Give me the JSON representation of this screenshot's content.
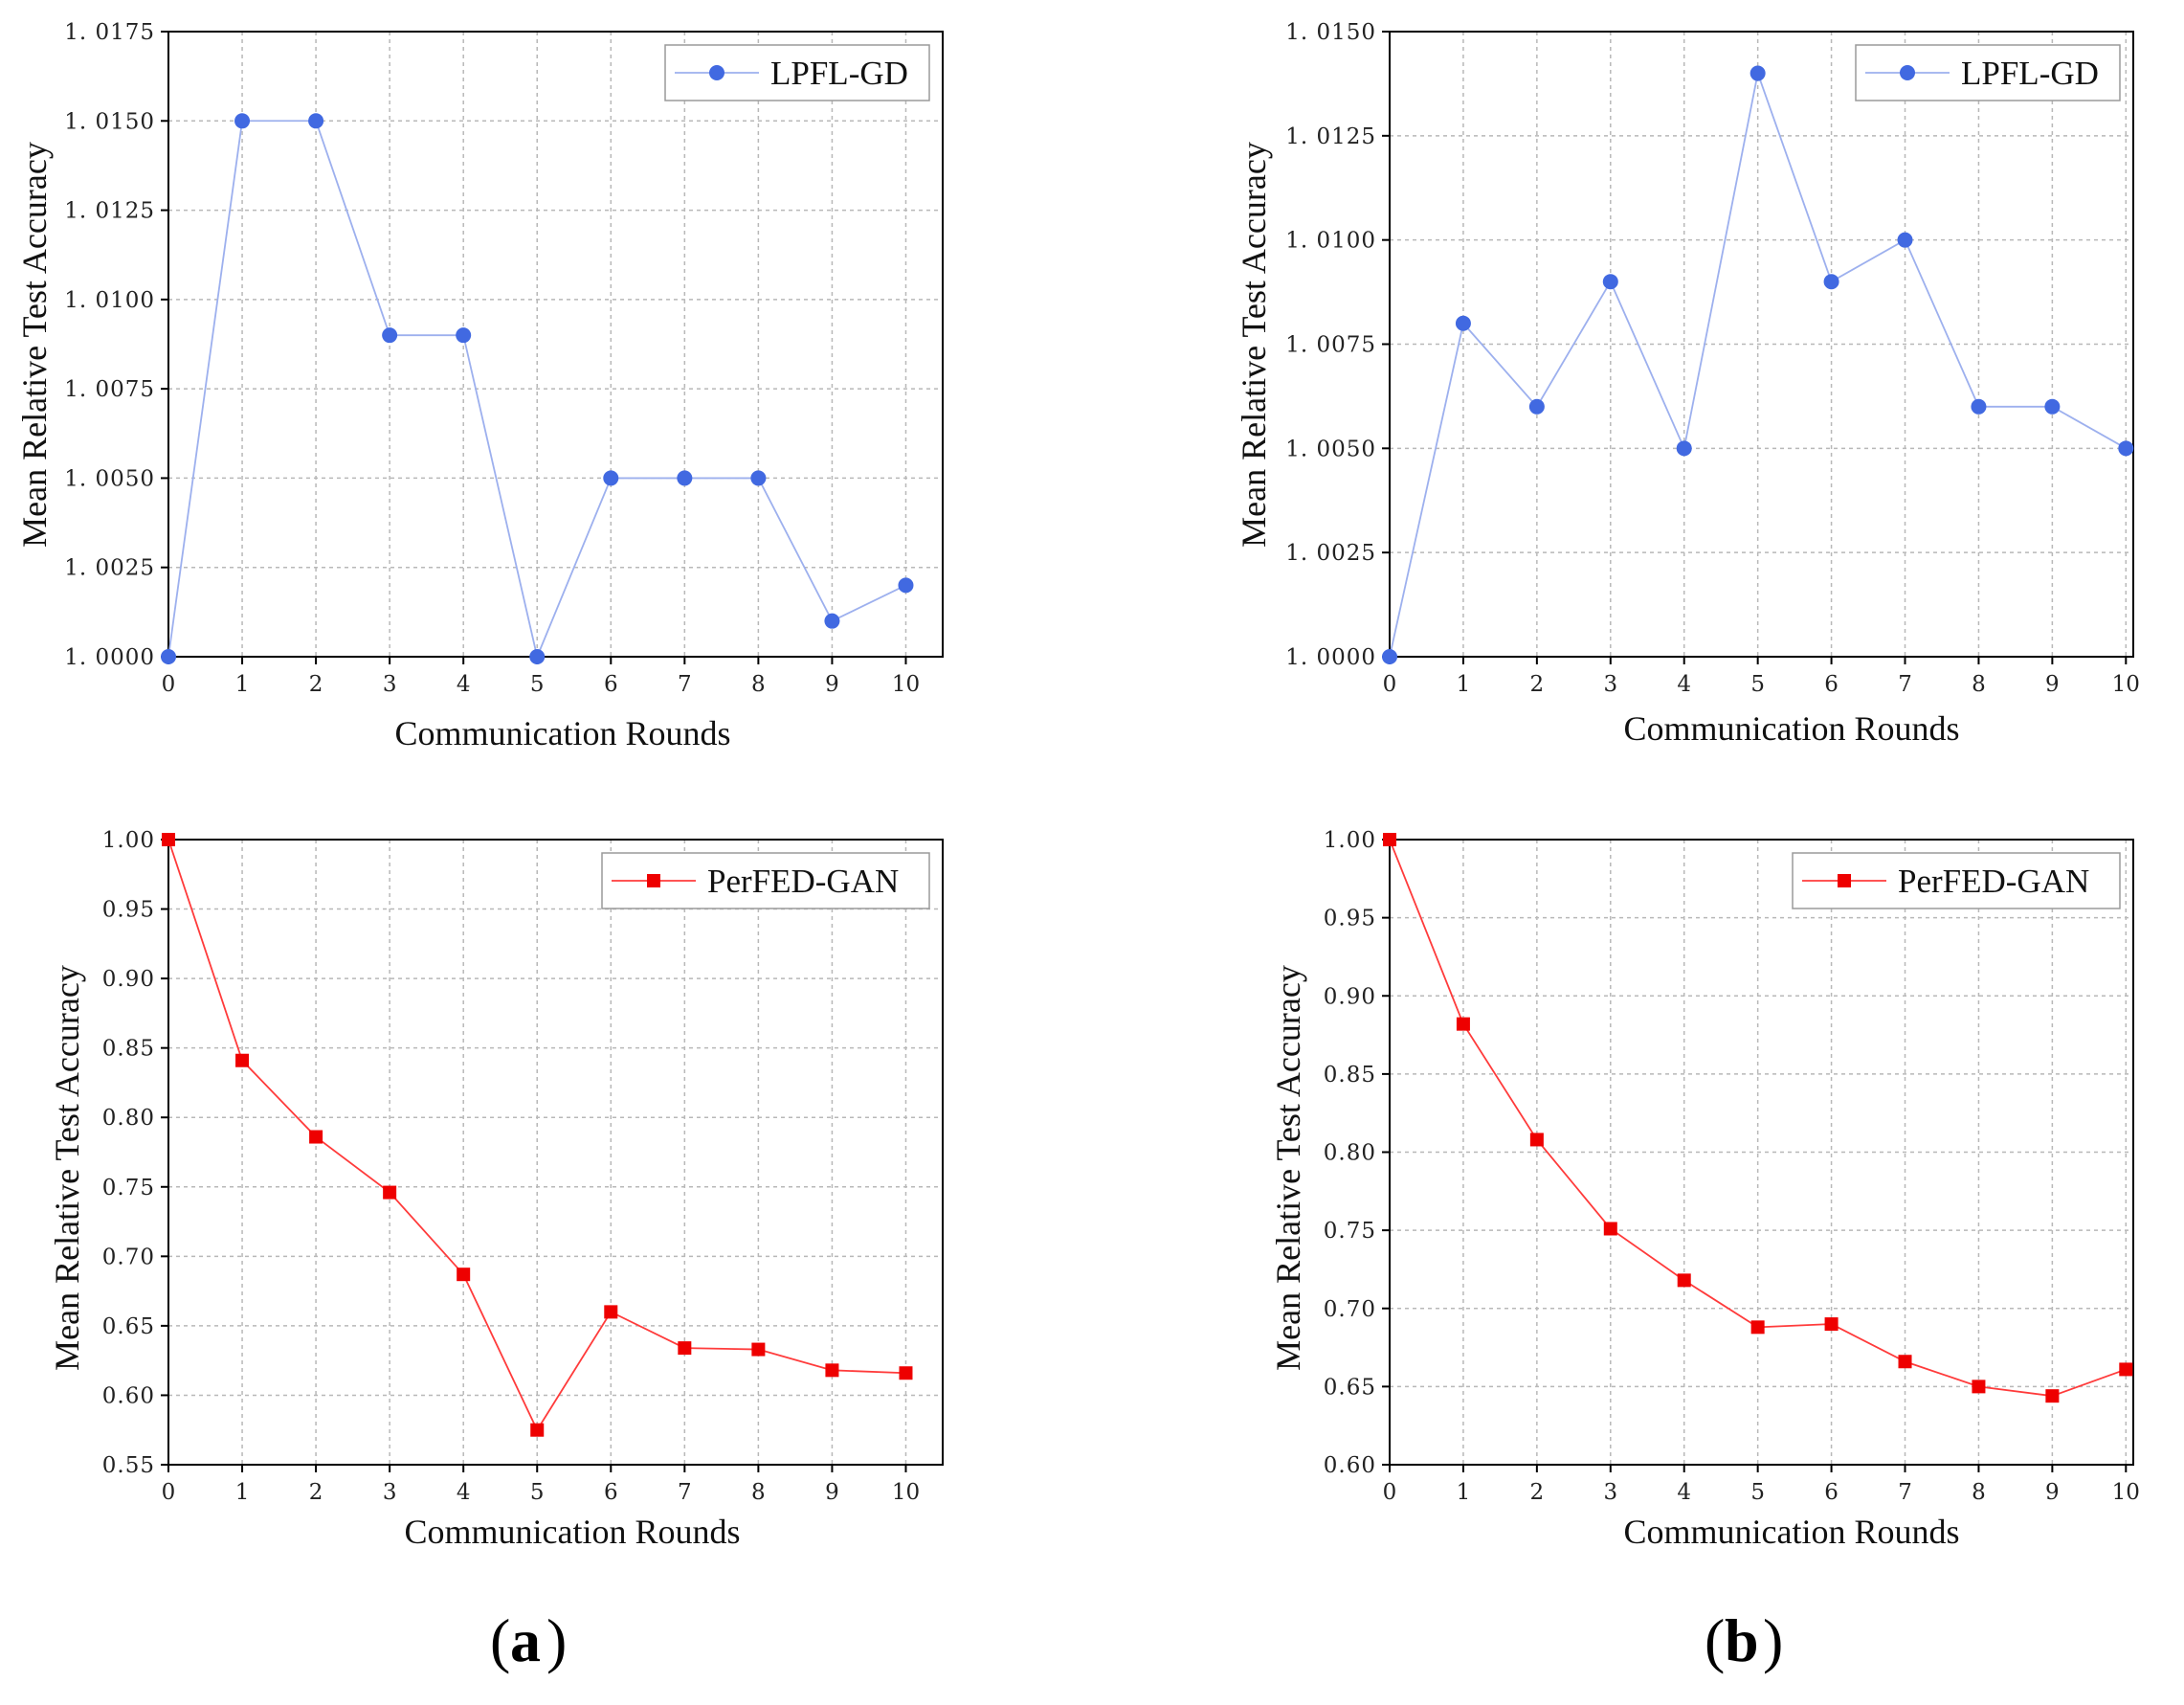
{
  "figure_labels": {
    "a": "a",
    "b": "b",
    "open_paren": "(",
    "close_paren": ")"
  },
  "colors": {
    "blue_line": "#9db0ee",
    "blue_marker": "#4169e1",
    "red_line": "#ff3b3b",
    "red_marker": "#ee0000",
    "grid": "#b8b8b8",
    "axis": "#000000"
  },
  "chart_data": [
    {
      "id": "a-top",
      "type": "line",
      "title": "",
      "xlabel": "Communication Rounds",
      "ylabel": "Mean Relative Test Accuracy",
      "xlim": [
        0,
        10.5
      ],
      "ylim": [
        1.0,
        1.0175
      ],
      "xticks": [
        0,
        1,
        2,
        3,
        4,
        5,
        6,
        7,
        8,
        9,
        10
      ],
      "yticks": [
        1.0,
        1.0025,
        1.005,
        1.0075,
        1.01,
        1.0125,
        1.015,
        1.0175
      ],
      "ytick_labels": [
        "1. 0000",
        "1. 0025",
        "1. 0050",
        "1. 0075",
        "1. 0100",
        "1. 0125",
        "1. 0150",
        "1. 0175"
      ],
      "grid": true,
      "legend_position": "top-right",
      "series": [
        {
          "name": "LPFL-GD",
          "marker": "circle",
          "color": "blue",
          "x": [
            0,
            1,
            2,
            3,
            4,
            5,
            6,
            7,
            8,
            9,
            10
          ],
          "values": [
            1.0,
            1.015,
            1.015,
            1.009,
            1.009,
            1.0,
            1.005,
            1.005,
            1.005,
            1.001,
            1.002
          ]
        }
      ]
    },
    {
      "id": "b-top",
      "type": "line",
      "title": "",
      "xlabel": "Communication Rounds",
      "ylabel": "Mean Relative Test Accuracy",
      "xlim": [
        0,
        10.1
      ],
      "ylim": [
        1.0,
        1.015
      ],
      "xticks": [
        0,
        1,
        2,
        3,
        4,
        5,
        6,
        7,
        8,
        9,
        10
      ],
      "yticks": [
        1.0,
        1.0025,
        1.005,
        1.0075,
        1.01,
        1.0125,
        1.015
      ],
      "ytick_labels": [
        "1. 0000",
        "1. 0025",
        "1. 0050",
        "1. 0075",
        "1. 0100",
        "1. 0125",
        "1. 0150"
      ],
      "grid": true,
      "legend_position": "top-right",
      "series": [
        {
          "name": "LPFL-GD",
          "marker": "circle",
          "color": "blue",
          "x": [
            0,
            1,
            2,
            3,
            4,
            5,
            6,
            7,
            8,
            9,
            10
          ],
          "values": [
            1.0,
            1.008,
            1.006,
            1.009,
            1.005,
            1.014,
            1.009,
            1.01,
            1.006,
            1.006,
            1.005
          ]
        }
      ]
    },
    {
      "id": "a-bottom",
      "type": "line",
      "title": "",
      "xlabel": "Communication Rounds",
      "ylabel": "Mean Relative Test Accuracy",
      "xlim": [
        0,
        10.5
      ],
      "ylim": [
        0.55,
        1.0
      ],
      "xticks": [
        0,
        1,
        2,
        3,
        4,
        5,
        6,
        7,
        8,
        9,
        10
      ],
      "yticks": [
        0.55,
        0.6,
        0.65,
        0.7,
        0.75,
        0.8,
        0.85,
        0.9,
        0.95,
        1.0
      ],
      "ytick_labels": [
        "0.55",
        "0.60",
        "0.65",
        "0.70",
        "0.75",
        "0.80",
        "0.85",
        "0.90",
        "0.95",
        "1.00"
      ],
      "grid": true,
      "legend_position": "top-right",
      "series": [
        {
          "name": "PerFED-GAN",
          "marker": "square",
          "color": "red",
          "x": [
            0,
            1,
            2,
            3,
            4,
            5,
            6,
            7,
            8,
            9,
            10
          ],
          "values": [
            1.0,
            0.841,
            0.786,
            0.746,
            0.687,
            0.575,
            0.66,
            0.634,
            0.633,
            0.618,
            0.616
          ]
        }
      ]
    },
    {
      "id": "b-bottom",
      "type": "line",
      "title": "",
      "xlabel": "Communication Rounds",
      "ylabel": "Mean Relative Test Accuracy",
      "xlim": [
        0,
        10.1
      ],
      "ylim": [
        0.6,
        1.0
      ],
      "xticks": [
        0,
        1,
        2,
        3,
        4,
        5,
        6,
        7,
        8,
        9,
        10
      ],
      "yticks": [
        0.6,
        0.65,
        0.7,
        0.75,
        0.8,
        0.85,
        0.9,
        0.95,
        1.0
      ],
      "ytick_labels": [
        "0.60",
        "0.65",
        "0.70",
        "0.75",
        "0.80",
        "0.85",
        "0.90",
        "0.95",
        "1.00"
      ],
      "grid": true,
      "legend_position": "top-right",
      "series": [
        {
          "name": "PerFED-GAN",
          "marker": "square",
          "color": "red",
          "x": [
            0,
            1,
            2,
            3,
            4,
            5,
            6,
            7,
            8,
            9,
            10
          ],
          "values": [
            1.0,
            0.882,
            0.808,
            0.751,
            0.718,
            0.688,
            0.69,
            0.666,
            0.65,
            0.644,
            0.661
          ]
        }
      ]
    }
  ]
}
